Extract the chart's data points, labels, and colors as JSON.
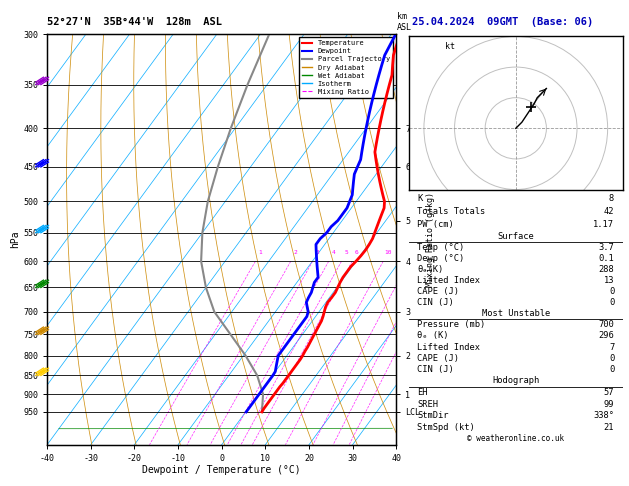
{
  "title_left": "52°27'N  35B°44'W  128m  ASL",
  "title_right": "25.04.2024  09GMT  (Base: 06)",
  "xlabel": "Dewpoint / Temperature (°C)",
  "ylabel_left": "hPa",
  "isotherm_color": "#00aaff",
  "dry_adiabat_color": "#cc8800",
  "wet_adiabat_color": "#008800",
  "mixing_ratio_color": "#ff00ff",
  "temp_color": "#ff0000",
  "dewpoint_color": "#0000ff",
  "parcel_color": "#888888",
  "pmin": 300,
  "pmax": 1050,
  "tmin": -40,
  "tmax": 40,
  "pressure_levels": [
    300,
    350,
    400,
    450,
    500,
    550,
    600,
    650,
    700,
    750,
    800,
    850,
    900,
    950
  ],
  "temp_profile_pressure": [
    300,
    310,
    320,
    330,
    340,
    350,
    360,
    370,
    380,
    390,
    400,
    410,
    420,
    430,
    440,
    450,
    460,
    470,
    480,
    490,
    500,
    510,
    520,
    530,
    540,
    550,
    560,
    570,
    580,
    590,
    600,
    610,
    620,
    630,
    640,
    650,
    660,
    670,
    680,
    690,
    700,
    710,
    720,
    730,
    740,
    750,
    760,
    770,
    780,
    790,
    800,
    810,
    820,
    830,
    840,
    850,
    860,
    870,
    880,
    890,
    900,
    910,
    920,
    930,
    940,
    950
  ],
  "temp_profile_temp": [
    -28,
    -27,
    -26,
    -24.5,
    -23,
    -22,
    -21,
    -20,
    -19,
    -18,
    -17,
    -16,
    -15,
    -14,
    -12.5,
    -11,
    -9.5,
    -8,
    -6.5,
    -5,
    -3.5,
    -2.5,
    -2,
    -1.5,
    -1,
    -0.5,
    0,
    0.2,
    0.3,
    0.2,
    0,
    -0.3,
    -0.3,
    -0.3,
    -0.1,
    0.2,
    0.5,
    0.5,
    0.4,
    0.7,
    1.2,
    1.7,
    2.1,
    2.3,
    2.5,
    2.7,
    2.9,
    3.1,
    3.3,
    3.4,
    3.6,
    3.7,
    3.7,
    3.7,
    3.7,
    3.7,
    3.7,
    3.7,
    3.6,
    3.6,
    3.6,
    3.6,
    3.6,
    3.6,
    3.6,
    3.7
  ],
  "dewp_profile_temp": [
    -29,
    -28.5,
    -28,
    -27,
    -26,
    -25,
    -24,
    -23,
    -22,
    -21,
    -20,
    -19,
    -18,
    -17,
    -16,
    -15.5,
    -15,
    -14,
    -13,
    -12,
    -11.5,
    -11,
    -11,
    -11,
    -11.5,
    -11.5,
    -12,
    -12,
    -11,
    -10,
    -9,
    -8,
    -7,
    -6,
    -6,
    -5.5,
    -5,
    -4.8,
    -4.5,
    -3.5,
    -2.5,
    -2,
    -2,
    -2,
    -2,
    -2,
    -2,
    -2,
    -2,
    -2,
    -2,
    -1.5,
    -1,
    -0.5,
    0,
    0.1,
    0.1,
    0.1,
    0.1,
    0.1,
    0.1,
    0.1,
    0.1,
    0.1,
    0.1,
    0.1
  ],
  "parcel_pressure": [
    950,
    900,
    850,
    800,
    750,
    700,
    650,
    600,
    550,
    500,
    450,
    400,
    350,
    300
  ],
  "parcel_temp": [
    3.7,
    1.0,
    -3.5,
    -9.5,
    -16.5,
    -24.0,
    -30.0,
    -35.5,
    -40.0,
    -44.0,
    -47.5,
    -51.0,
    -54.5,
    -58.0
  ],
  "mixing_ratio_vals": [
    1,
    2,
    3,
    4,
    5,
    6,
    10,
    15,
    20,
    25
  ],
  "km_ticks": {
    "7": 400,
    "6": 450,
    "5": 530,
    "4": 600,
    "3": 700,
    "2": 800,
    "1": 900,
    "LCL": 950
  },
  "wind_barb_pressures": [
    350,
    450,
    550,
    650,
    750,
    850
  ],
  "wind_barb_colors": [
    "#9900cc",
    "#0000ff",
    "#00aaff",
    "#008800",
    "#cc8800",
    "#ffcc00"
  ],
  "info_K": "8",
  "info_TT": "42",
  "info_PW": "1.17",
  "info_surf_temp": "3.7",
  "info_surf_dewp": "0.1",
  "info_surf_theta": "288",
  "info_surf_li": "13",
  "info_surf_cape": "0",
  "info_surf_cin": "0",
  "info_mu_pressure": "700",
  "info_mu_theta": "296",
  "info_mu_li": "7",
  "info_mu_cape": "0",
  "info_mu_cin": "0",
  "info_hodo_eh": "57",
  "info_hodo_sreh": "99",
  "info_hodo_stmdir": "338°",
  "info_hodo_stmspd": "21"
}
